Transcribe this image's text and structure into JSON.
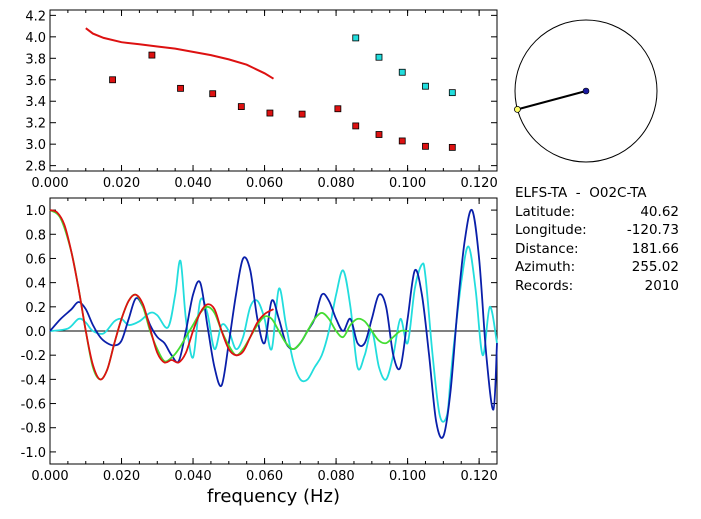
{
  "info": {
    "station_pair": "ELFS-TA  -  O02C-TA",
    "rows": [
      {
        "label": "Latitude:",
        "value": "40.62"
      },
      {
        "label": "Longitude:",
        "value": "-120.73"
      },
      {
        "label": "Distance:",
        "value": "181.66"
      },
      {
        "label": "Azimuth:",
        "value": "255.02"
      },
      {
        "label": "Records:",
        "value": "2010"
      }
    ]
  },
  "colors": {
    "red": "#dd1111",
    "cyan": "#22dddd",
    "blue": "#0a1faa",
    "green": "#44dd33",
    "black": "#000000"
  },
  "chart_data": [
    {
      "type": "scatter",
      "title": "",
      "xlabel": "",
      "ylabel": "",
      "xlim": [
        0.0,
        0.125
      ],
      "ylim": [
        2.75,
        4.25
      ],
      "xticks": [
        "0.000",
        "0.020",
        "0.040",
        "0.060",
        "0.080",
        "0.100",
        "0.120"
      ],
      "yticks": [
        "2.8",
        "3.0",
        "3.2",
        "3.4",
        "3.6",
        "3.8",
        "4.0",
        "4.2"
      ],
      "series": [
        {
          "color": "#dd1111",
          "kind": "square",
          "x": [
            0.0175,
            0.0285,
            0.0365,
            0.0455,
            0.0535,
            0.0615,
            0.0705,
            0.0805,
            0.0855,
            0.092,
            0.0985,
            0.105,
            0.1125
          ],
          "y": [
            3.6,
            3.83,
            3.52,
            3.47,
            3.35,
            3.29,
            3.28,
            3.33,
            3.17,
            3.09,
            3.03,
            2.98,
            2.97
          ]
        },
        {
          "color": "#22dddd",
          "kind": "square",
          "x": [
            0.0855,
            0.092,
            0.0985,
            0.105,
            0.1125
          ],
          "y": [
            3.99,
            3.81,
            3.67,
            3.54,
            3.48
          ]
        },
        {
          "color": "#dd1111",
          "kind": "line",
          "x": [
            0.01,
            0.012,
            0.015,
            0.02,
            0.025,
            0.03,
            0.035,
            0.04,
            0.045,
            0.05,
            0.055,
            0.06,
            0.0625
          ],
          "y": [
            4.08,
            4.03,
            3.99,
            3.95,
            3.93,
            3.91,
            3.89,
            3.86,
            3.83,
            3.79,
            3.74,
            3.66,
            3.61
          ]
        }
      ]
    },
    {
      "type": "line",
      "title": "",
      "xlabel": "frequency (Hz)",
      "ylabel": "",
      "xlim": [
        0.0,
        0.125
      ],
      "ylim": [
        -1.1,
        1.1
      ],
      "xticks": [
        "0.000",
        "0.020",
        "0.040",
        "0.060",
        "0.080",
        "0.100",
        "0.120"
      ],
      "yticks": [
        "1.0",
        "0.8",
        "0.6",
        "0.4",
        "0.2",
        "0.0",
        "-0.2",
        "-0.4",
        "-0.6",
        "-0.8",
        "-1.0"
      ],
      "zero_line": true,
      "series": [
        {
          "color": "#22dddd",
          "x": [
            0.0,
            0.005,
            0.008,
            0.01,
            0.012,
            0.015,
            0.018,
            0.02,
            0.022,
            0.025,
            0.028,
            0.03,
            0.033,
            0.035,
            0.0365,
            0.038,
            0.04,
            0.042,
            0.044,
            0.046,
            0.048,
            0.05,
            0.052,
            0.054,
            0.056,
            0.058,
            0.06,
            0.062,
            0.064,
            0.066,
            0.068,
            0.07,
            0.072,
            0.074,
            0.076,
            0.078,
            0.08,
            0.082,
            0.084,
            0.086,
            0.088,
            0.09,
            0.092,
            0.094,
            0.096,
            0.098,
            0.1,
            0.102,
            0.104,
            0.105,
            0.107,
            0.109,
            0.111,
            0.112,
            0.113,
            0.115,
            0.117,
            0.119,
            0.121,
            0.123,
            0.125
          ],
          "y": [
            0.0,
            0.02,
            0.1,
            0.07,
            0.0,
            -0.02,
            0.08,
            0.1,
            0.05,
            0.08,
            0.15,
            0.13,
            0.03,
            0.3,
            0.58,
            0.1,
            -0.22,
            0.25,
            0.15,
            -0.15,
            0.05,
            0.0,
            -0.15,
            -0.05,
            0.2,
            0.25,
            0.1,
            -0.15,
            0.35,
            0.05,
            -0.25,
            -0.4,
            -0.4,
            -0.3,
            -0.2,
            0.0,
            0.3,
            0.5,
            0.2,
            -0.3,
            -0.2,
            0.0,
            -0.3,
            -0.4,
            -0.2,
            0.1,
            -0.1,
            0.35,
            0.55,
            0.45,
            -0.2,
            -0.7,
            -0.7,
            -0.4,
            -0.1,
            0.4,
            0.7,
            0.35,
            -0.2,
            0.2,
            -0.1
          ]
        },
        {
          "color": "#0a1faa",
          "x": [
            0.0,
            0.003,
            0.006,
            0.008,
            0.01,
            0.012,
            0.014,
            0.016,
            0.018,
            0.02,
            0.022,
            0.024,
            0.026,
            0.028,
            0.03,
            0.032,
            0.034,
            0.036,
            0.038,
            0.04,
            0.042,
            0.044,
            0.046,
            0.048,
            0.05,
            0.052,
            0.054,
            0.056,
            0.058,
            0.06,
            0.062,
            0.064,
            0.066,
            0.068,
            0.07,
            0.072,
            0.074,
            0.076,
            0.078,
            0.08,
            0.082,
            0.084,
            0.086,
            0.088,
            0.09,
            0.092,
            0.094,
            0.096,
            0.098,
            0.1,
            0.102,
            0.104,
            0.106,
            0.108,
            0.11,
            0.112,
            0.114,
            0.116,
            0.118,
            0.12,
            0.122,
            0.124,
            0.125
          ],
          "y": [
            0.0,
            0.1,
            0.18,
            0.24,
            0.18,
            0.05,
            -0.05,
            -0.1,
            -0.12,
            -0.08,
            0.1,
            0.27,
            0.2,
            0.05,
            -0.05,
            -0.1,
            -0.2,
            -0.25,
            0.0,
            0.3,
            0.4,
            0.05,
            -0.3,
            -0.45,
            -0.1,
            0.3,
            0.6,
            0.5,
            0.1,
            -0.1,
            0.25,
            0.1,
            -0.1,
            -0.15,
            -0.1,
            0.0,
            0.1,
            0.3,
            0.25,
            0.1,
            0.0,
            0.1,
            -0.1,
            -0.1,
            0.1,
            0.3,
            0.2,
            -0.2,
            -0.3,
            0.1,
            0.5,
            0.3,
            -0.2,
            -0.75,
            -0.87,
            -0.5,
            0.2,
            0.75,
            1.0,
            0.6,
            -0.2,
            -0.65,
            -0.1
          ]
        },
        {
          "color": "#44dd33",
          "x": [
            0.0,
            0.003,
            0.006,
            0.008,
            0.01,
            0.012,
            0.014,
            0.016,
            0.018,
            0.02,
            0.022,
            0.024,
            0.026,
            0.028,
            0.03,
            0.032,
            0.034,
            0.036,
            0.038,
            0.04,
            0.042,
            0.044,
            0.046,
            0.048,
            0.05,
            0.052,
            0.054,
            0.056,
            0.058,
            0.06,
            0.062,
            0.064,
            0.066,
            0.068,
            0.07,
            0.072,
            0.074,
            0.076,
            0.078,
            0.08,
            0.082,
            0.084,
            0.086,
            0.088,
            0.09,
            0.092,
            0.094,
            0.096,
            0.098,
            0.1
          ],
          "y": [
            1.0,
            0.93,
            0.65,
            0.35,
            0.0,
            -0.3,
            -0.4,
            -0.32,
            -0.1,
            0.1,
            0.25,
            0.3,
            0.2,
            0.0,
            -0.15,
            -0.25,
            -0.22,
            -0.15,
            -0.05,
            0.05,
            0.15,
            0.2,
            0.15,
            0.0,
            -0.12,
            -0.2,
            -0.15,
            -0.05,
            0.05,
            0.12,
            0.1,
            0.0,
            -0.1,
            -0.15,
            -0.1,
            0.0,
            0.1,
            0.15,
            0.1,
            0.0,
            -0.05,
            0.05,
            0.1,
            0.08,
            0.0,
            -0.08,
            -0.1,
            -0.05,
            0.0,
            0.0
          ]
        },
        {
          "color": "#dd1111",
          "x": [
            0.0,
            0.002,
            0.004,
            0.006,
            0.008,
            0.01,
            0.012,
            0.014,
            0.016,
            0.018,
            0.02,
            0.022,
            0.024,
            0.026,
            0.028,
            0.03,
            0.032,
            0.034,
            0.036,
            0.038,
            0.04,
            0.042,
            0.044,
            0.046,
            0.048,
            0.05,
            0.052,
            0.054,
            0.056,
            0.058,
            0.06,
            0.0625
          ],
          "y": [
            1.0,
            0.98,
            0.88,
            0.65,
            0.35,
            0.0,
            -0.28,
            -0.4,
            -0.32,
            -0.1,
            0.1,
            0.25,
            0.3,
            0.22,
            0.02,
            -0.18,
            -0.26,
            -0.24,
            -0.26,
            -0.18,
            0.0,
            0.15,
            0.22,
            0.18,
            0.0,
            -0.15,
            -0.2,
            -0.17,
            -0.05,
            0.07,
            0.14,
            0.18
          ]
        }
      ]
    },
    {
      "type": "polar-azimuth",
      "azimuth_deg": 255.02,
      "line_color": "#000000",
      "center_color": "#1a1aa0",
      "end_color": "#ffff66"
    }
  ]
}
